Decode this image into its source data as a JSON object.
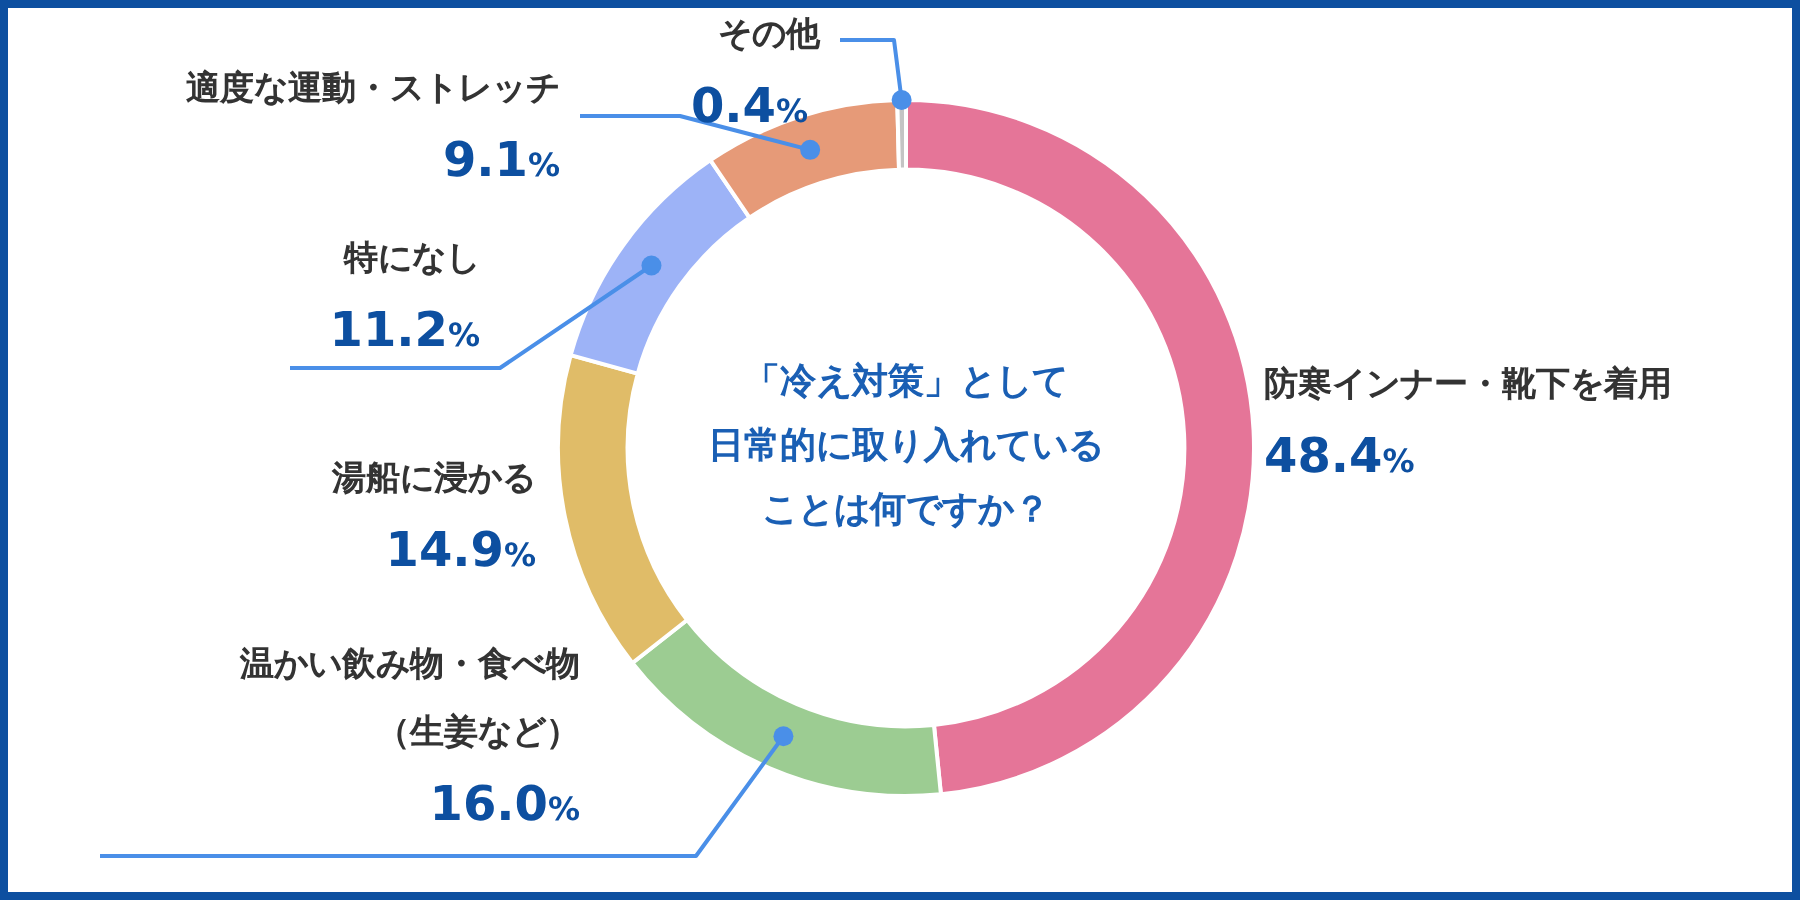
{
  "chart_data": {
    "type": "donut",
    "title": "「冷え対策」として日常的に取り入れていることは何ですか？",
    "categories": [
      "防寒インナー・靴下を着用",
      "温かい飲み物・食べ物（生姜など）",
      "湯船に浸かる",
      "特になし",
      "適度な運動・ストレッチ",
      "その他"
    ],
    "values": [
      48.4,
      16.0,
      14.9,
      11.2,
      9.1,
      0.4
    ],
    "colors": [
      "#e57598",
      "#9ccc92",
      "#e0bc68",
      "#9db3f7",
      "#e69a78",
      "#c4c4c4"
    ],
    "value_labels": [
      "48.4%",
      "16.0%",
      "14.9%",
      "11.2%",
      "9.1%",
      "0.4%"
    ],
    "legend": false
  }
}
